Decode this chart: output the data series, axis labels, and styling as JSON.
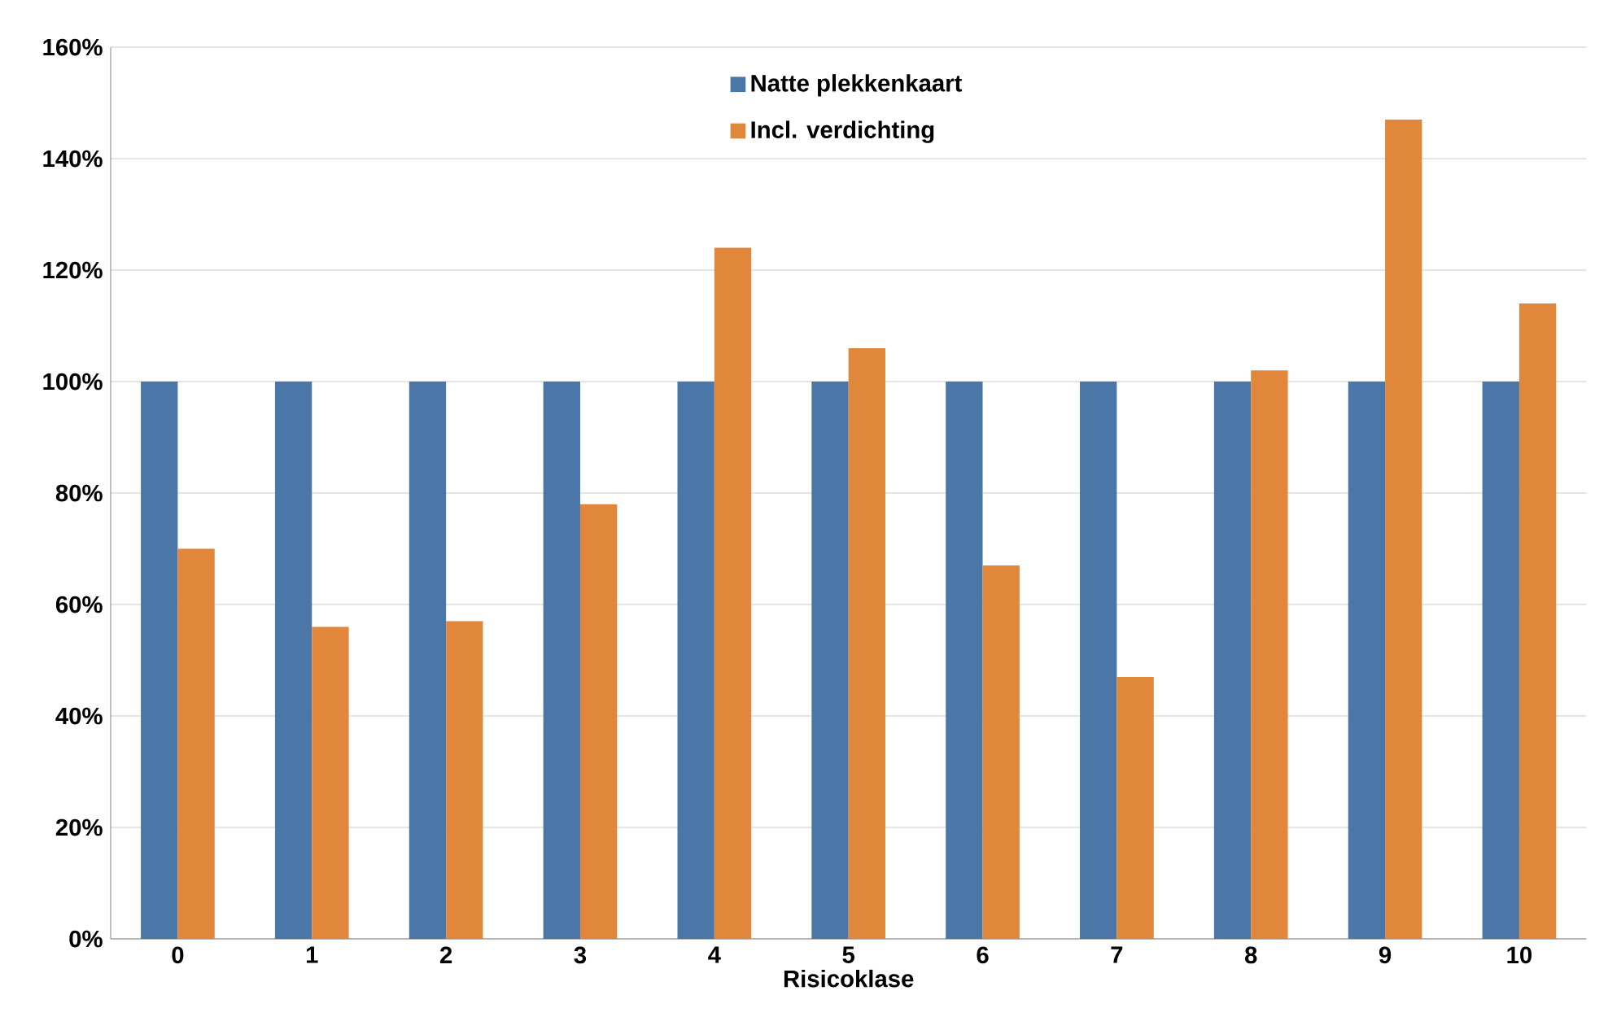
{
  "chart_data": {
    "type": "bar",
    "xlabel": "Risicoklase",
    "categories": [
      "0",
      "1",
      "2",
      "3",
      "4",
      "5",
      "6",
      "7",
      "8",
      "9",
      "10"
    ],
    "series": [
      {
        "name": "Natte plekkenkaart",
        "color": "#4a76a8",
        "values": [
          100,
          100,
          100,
          100,
          100,
          100,
          100,
          100,
          100,
          100,
          100
        ]
      },
      {
        "name": "Incl. verdichting",
        "color": "#e0873c",
        "values": [
          70,
          56,
          57,
          78,
          124,
          106,
          67,
          47,
          102,
          147,
          114
        ]
      }
    ],
    "ylim": [
      0,
      160
    ],
    "yticks": [
      {
        "value": 0,
        "label": "0%"
      },
      {
        "value": 20,
        "label": "20%"
      },
      {
        "value": 40,
        "label": "40%"
      },
      {
        "value": 60,
        "label": "60%"
      },
      {
        "value": 80,
        "label": "80%"
      },
      {
        "value": 100,
        "label": "100%"
      },
      {
        "value": 120,
        "label": "120%"
      },
      {
        "value": 140,
        "label": "140%"
      },
      {
        "value": 160,
        "label": "160%"
      }
    ],
    "grid": "y",
    "legend": "top"
  }
}
